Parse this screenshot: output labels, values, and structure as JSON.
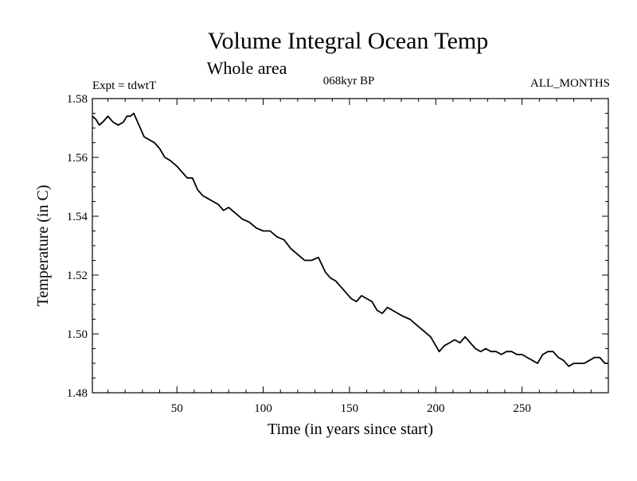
{
  "chart_data": {
    "type": "line",
    "title": "Volume Integral Ocean Temp",
    "subtitle": "Whole area",
    "experiment_label": "Expt = tdwtT",
    "period_label": "068kyr BP",
    "months_label": "ALL_MONTHS",
    "xlabel": "Time (in years since start)",
    "ylabel": "Temperature (in C)",
    "xlim": [
      1,
      300
    ],
    "ylim": [
      1.48,
      1.58
    ],
    "xticks": [
      50,
      100,
      150,
      200,
      250
    ],
    "xtick_labels": [
      "50",
      "100",
      "150",
      "200",
      "250"
    ],
    "yticks": [
      1.48,
      1.5,
      1.52,
      1.54,
      1.56,
      1.58
    ],
    "ytick_labels": [
      "1.48",
      "1.50",
      "1.52",
      "1.54",
      "1.56",
      "1.58"
    ],
    "grid": false,
    "series": [
      {
        "name": "Volume Integral Ocean Temp",
        "color": "#000000",
        "x": [
          1,
          3,
          5,
          7,
          10,
          13,
          16,
          19,
          21,
          23,
          25,
          28,
          31,
          34,
          37,
          40,
          43,
          46,
          50,
          53,
          56,
          59,
          62,
          65,
          68,
          71,
          74,
          77,
          80,
          84,
          88,
          92,
          96,
          100,
          104,
          108,
          112,
          116,
          120,
          124,
          128,
          132,
          136,
          139,
          142,
          145,
          148,
          151,
          154,
          157,
          160,
          163,
          166,
          169,
          172,
          175,
          178,
          181,
          185,
          189,
          193,
          197,
          200,
          202,
          205,
          208,
          211,
          214,
          217,
          220,
          223,
          226,
          229,
          232,
          235,
          238,
          241,
          244,
          247,
          250,
          253,
          256,
          259,
          262,
          265,
          268,
          271,
          274,
          277,
          280,
          283,
          286,
          289,
          292,
          295,
          298,
          300
        ],
        "values": [
          1.574,
          1.573,
          1.571,
          1.572,
          1.574,
          1.572,
          1.571,
          1.572,
          1.574,
          1.574,
          1.575,
          1.571,
          1.567,
          1.566,
          1.565,
          1.563,
          1.56,
          1.559,
          1.557,
          1.555,
          1.553,
          1.553,
          1.549,
          1.547,
          1.546,
          1.545,
          1.544,
          1.542,
          1.543,
          1.541,
          1.539,
          1.538,
          1.536,
          1.535,
          1.535,
          1.533,
          1.532,
          1.529,
          1.527,
          1.525,
          1.525,
          1.526,
          1.521,
          1.519,
          1.518,
          1.516,
          1.514,
          1.512,
          1.511,
          1.513,
          1.512,
          1.511,
          1.508,
          1.507,
          1.509,
          1.508,
          1.507,
          1.506,
          1.505,
          1.503,
          1.501,
          1.499,
          1.496,
          1.494,
          1.496,
          1.497,
          1.498,
          1.497,
          1.499,
          1.497,
          1.495,
          1.494,
          1.495,
          1.494,
          1.494,
          1.493,
          1.494,
          1.494,
          1.493,
          1.493,
          1.492,
          1.491,
          1.49,
          1.493,
          1.494,
          1.494,
          1.492,
          1.491,
          1.489,
          1.49,
          1.49,
          1.49,
          1.491,
          1.492,
          1.492,
          1.49,
          1.49
        ]
      }
    ]
  }
}
